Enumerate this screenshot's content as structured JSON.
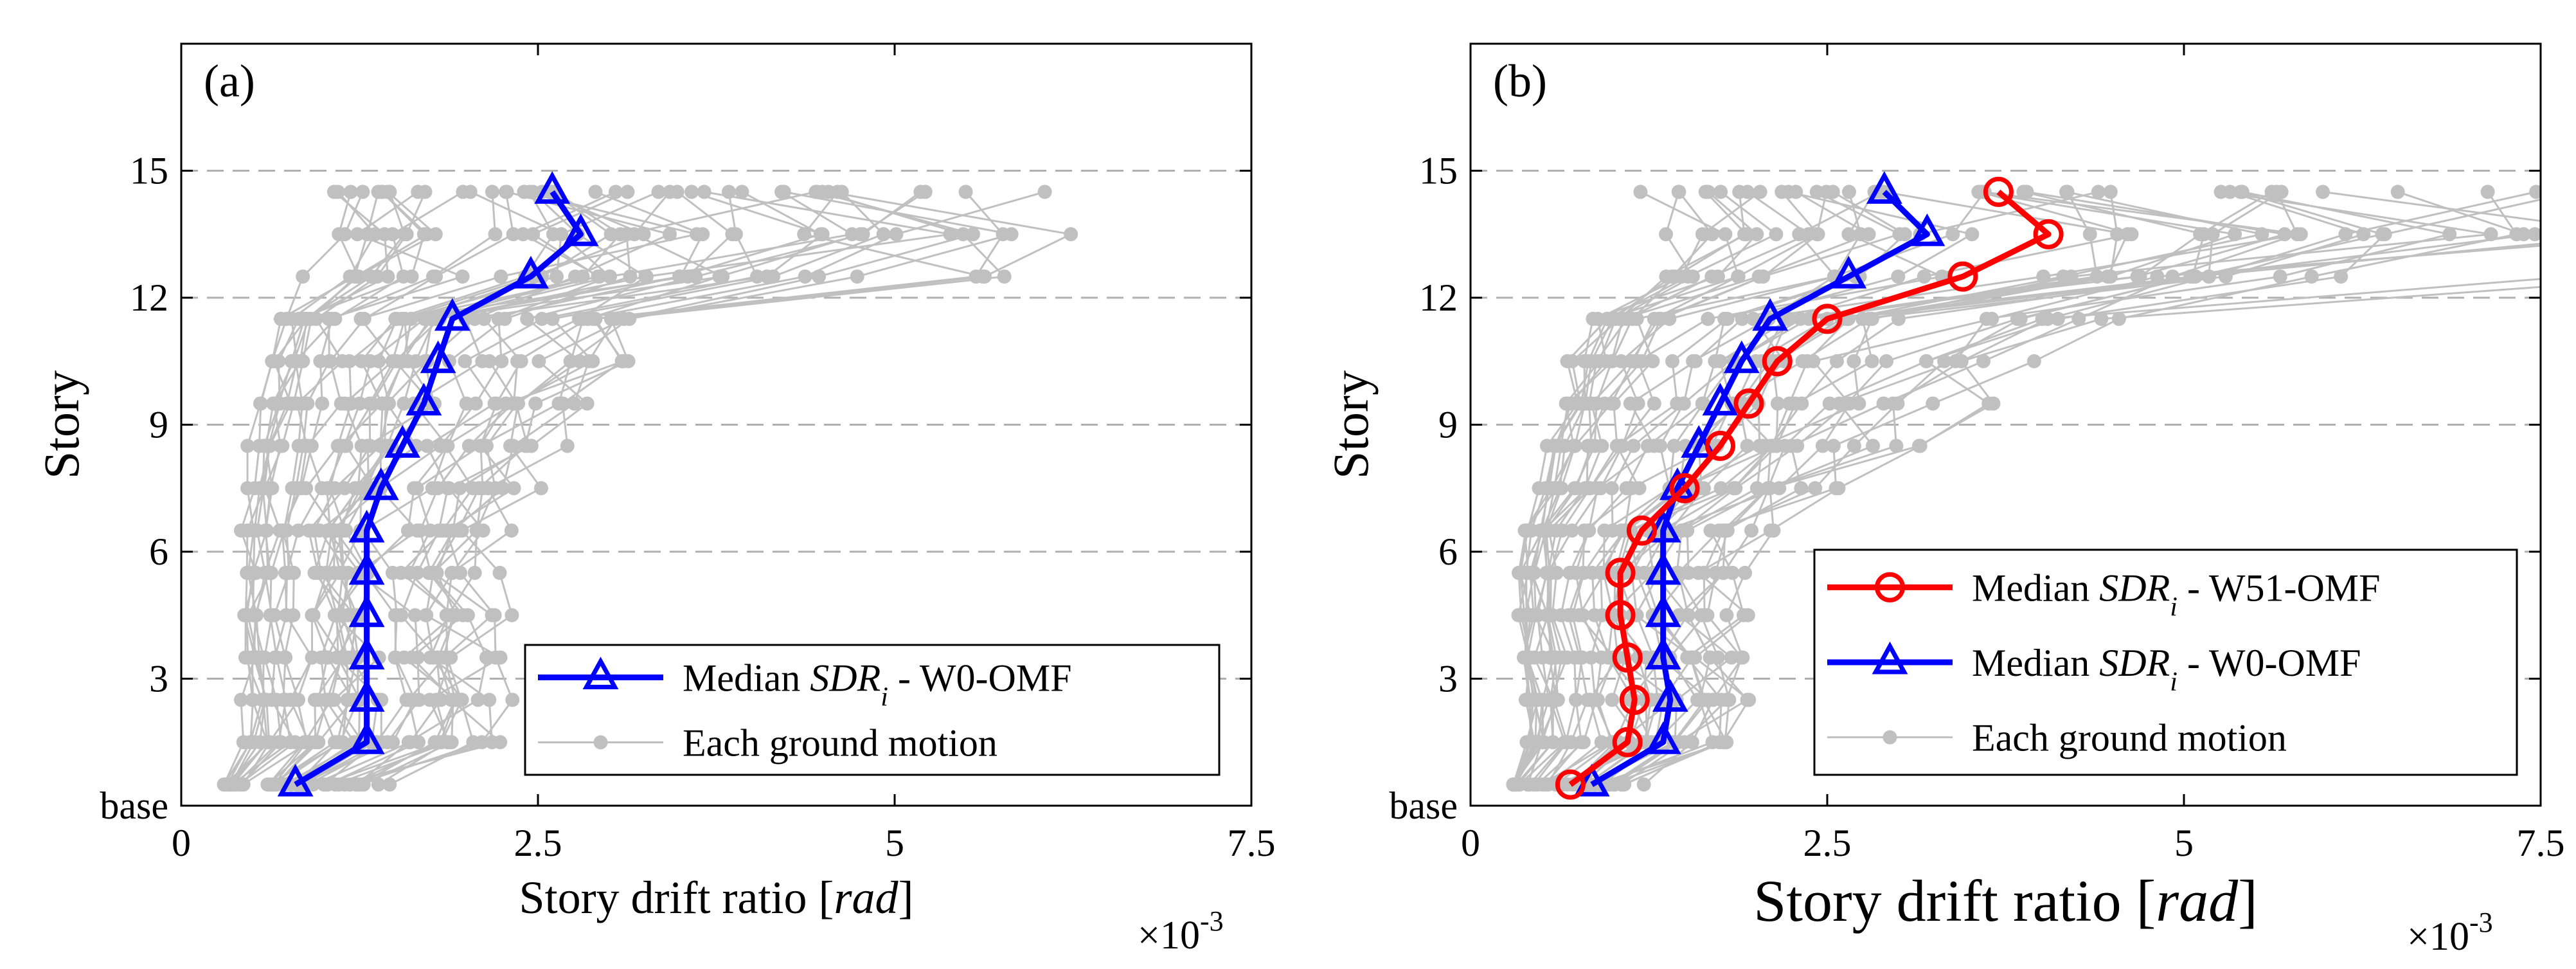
{
  "chart_data": [
    {
      "type": "line",
      "panel_label": "(a)",
      "xlabel_prefix": "Story drift ratio [",
      "xlabel_unit": "rad",
      "xlabel_suffix": "]",
      "ylabel": "Story",
      "x_multiplier_base": "×10",
      "x_multiplier_exp": "-3",
      "xlim": [
        0,
        7.5
      ],
      "ylim": [
        0,
        18
      ],
      "xticks": [
        0,
        2.5,
        5,
        7.5
      ],
      "xtick_labels": [
        "0",
        "2.5",
        "5",
        "7.5"
      ],
      "yticks": [
        0,
        3,
        6,
        9,
        12,
        15
      ],
      "ytick_labels": [
        "base",
        "3",
        "6",
        "9",
        "12",
        "15"
      ],
      "grid": "horizontal dashed",
      "legend_position": "bottom-right",
      "series": [
        {
          "label_prefix": "Median ",
          "label_sym": "SDR",
          "label_sub": "i",
          "label_suffix": " - W0-OMF",
          "color": "#0000ff",
          "marker": "triangle",
          "x": [
            0.8,
            1.3,
            1.3,
            1.3,
            1.3,
            1.3,
            1.3,
            1.4,
            1.55,
            1.7,
            1.8,
            1.9,
            2.45,
            2.8,
            2.6
          ],
          "y": [
            0.5,
            1.5,
            2.5,
            3.5,
            4.5,
            5.5,
            6.5,
            7.5,
            8.5,
            9.5,
            10.5,
            11.5,
            12.5,
            13.5,
            14.5
          ]
        },
        {
          "label": "Each ground motion",
          "color": "#c0c0c0",
          "marker": "dot",
          "count": 44
        }
      ]
    },
    {
      "type": "line",
      "panel_label": "(b)",
      "xlabel_prefix": "Story drift ratio [",
      "xlabel_unit": "rad",
      "xlabel_suffix": "]",
      "ylabel": "Story",
      "x_multiplier_base": "×10",
      "x_multiplier_exp": "-3",
      "xlim": [
        0,
        7.5
      ],
      "ylim": [
        0,
        18
      ],
      "xticks": [
        0,
        2.5,
        5,
        7.5
      ],
      "xtick_labels": [
        "0",
        "2.5",
        "5",
        "7.5"
      ],
      "yticks": [
        0,
        3,
        6,
        9,
        12,
        15
      ],
      "ytick_labels": [
        "base",
        "3",
        "6",
        "9",
        "12",
        "15"
      ],
      "grid": "horizontal dashed",
      "legend_position": "bottom-right",
      "series": [
        {
          "label_prefix": "Median ",
          "label_sym": "SDR",
          "label_sub": "i",
          "label_suffix": " - W51-OMF",
          "color": "#ff0000",
          "marker": "circle",
          "x": [
            0.7,
            1.1,
            1.15,
            1.1,
            1.05,
            1.05,
            1.2,
            1.5,
            1.75,
            1.95,
            2.15,
            2.5,
            3.45,
            4.05,
            3.7
          ],
          "y": [
            0.5,
            1.5,
            2.5,
            3.5,
            4.5,
            5.5,
            6.5,
            7.5,
            8.5,
            9.5,
            10.5,
            11.5,
            12.5,
            13.5,
            14.5
          ]
        },
        {
          "label_prefix": "Median ",
          "label_sym": "SDR",
          "label_sub": "i",
          "label_suffix": " - W0-OMF",
          "color": "#0000ff",
          "marker": "triangle",
          "x": [
            0.85,
            1.35,
            1.4,
            1.35,
            1.35,
            1.35,
            1.35,
            1.45,
            1.6,
            1.75,
            1.9,
            2.1,
            2.65,
            3.2,
            2.9
          ],
          "y": [
            0.5,
            1.5,
            2.5,
            3.5,
            4.5,
            5.5,
            6.5,
            7.5,
            8.5,
            9.5,
            10.5,
            11.5,
            12.5,
            13.5,
            14.5
          ]
        },
        {
          "label": "Each ground motion",
          "color": "#c0c0c0",
          "marker": "dot",
          "count": 44
        }
      ]
    }
  ]
}
